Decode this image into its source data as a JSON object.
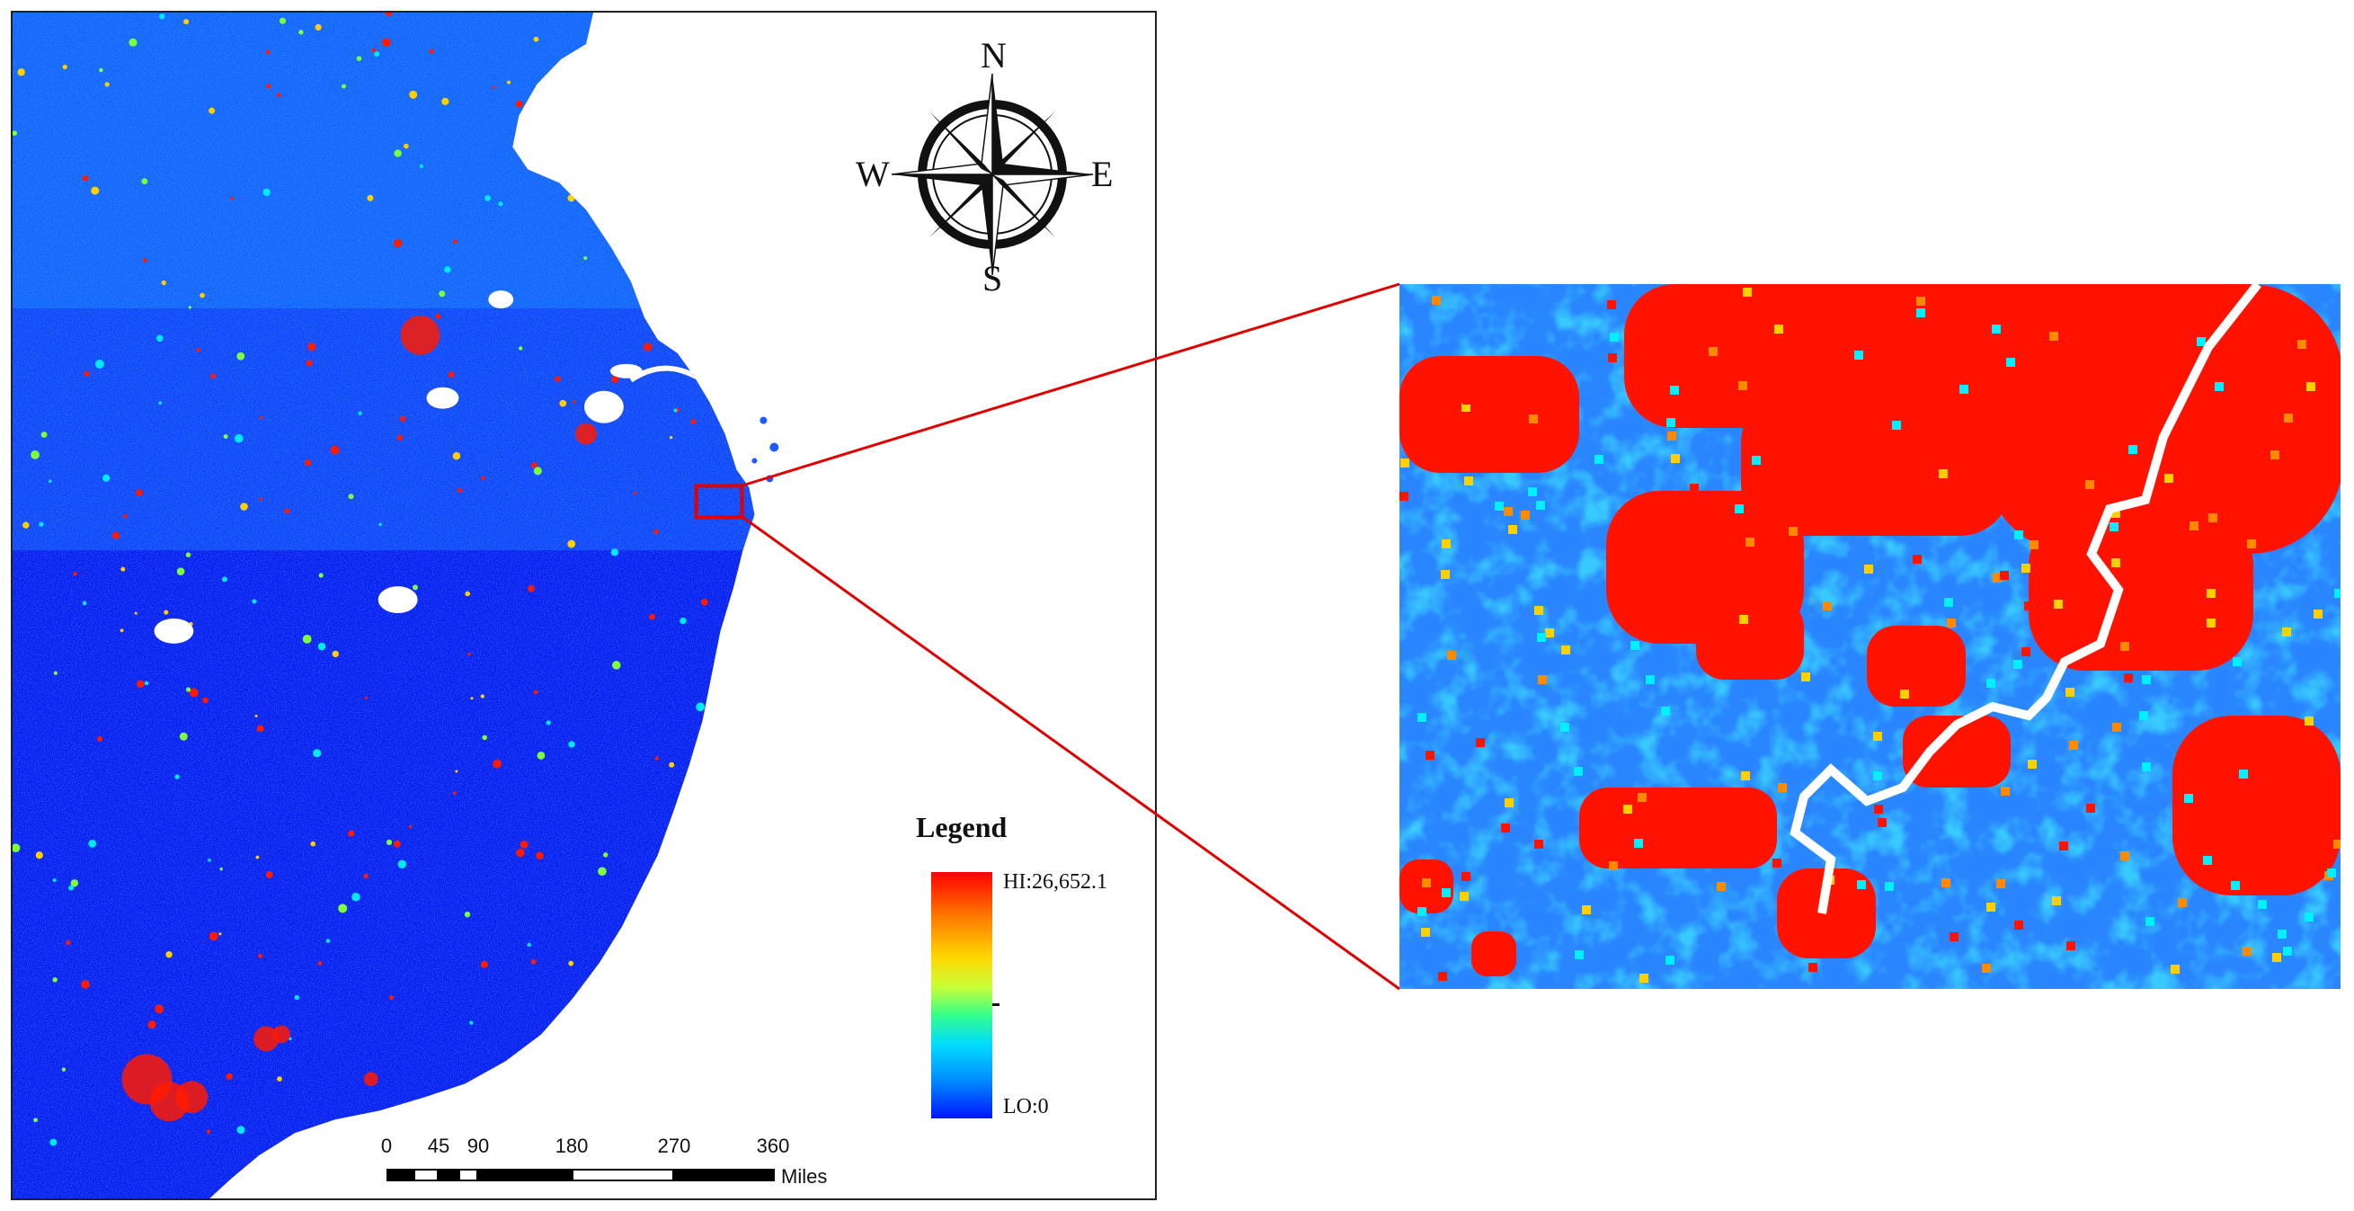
{
  "compass": {
    "north": "N",
    "south": "S",
    "east": "E",
    "west": "W",
    "icon": "compass-rose-icon"
  },
  "legend": {
    "title": "Legend",
    "high_label": "HI:26,652.1",
    "low_label": "LO:0",
    "high_value": 26652.1,
    "low_value": 0,
    "colors": [
      "#ff0000",
      "#ff7a00",
      "#ffd800",
      "#35ff8a",
      "#00dcff",
      "#0090ff",
      "#0015ff"
    ]
  },
  "scalebar": {
    "labels": [
      "0",
      "45",
      "90",
      "180",
      "270",
      "360"
    ],
    "units": "Miles"
  },
  "colors": {
    "land_low": "#0a1ef0",
    "land_mid": "#1a8cff",
    "hot": "#ff1a00",
    "sea": "#ffffff",
    "highlight_box": "#e00000"
  }
}
